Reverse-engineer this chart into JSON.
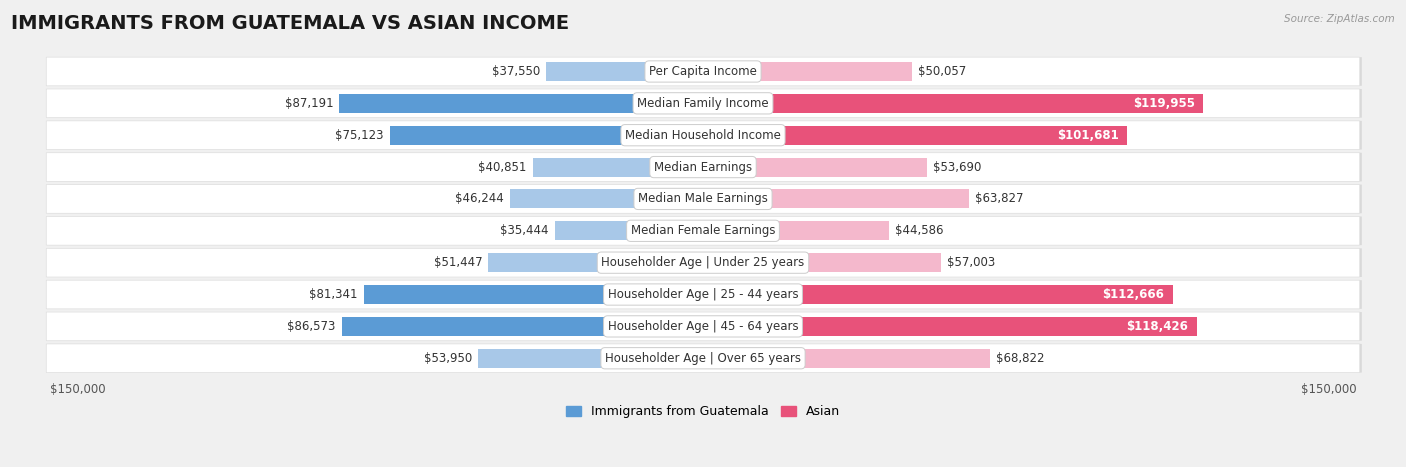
{
  "title": "IMMIGRANTS FROM GUATEMALA VS ASIAN INCOME",
  "source": "Source: ZipAtlas.com",
  "categories": [
    "Per Capita Income",
    "Median Family Income",
    "Median Household Income",
    "Median Earnings",
    "Median Male Earnings",
    "Median Female Earnings",
    "Householder Age | Under 25 years",
    "Householder Age | 25 - 44 years",
    "Householder Age | 45 - 64 years",
    "Householder Age | Over 65 years"
  ],
  "guatemala_values": [
    37550,
    87191,
    75123,
    40851,
    46244,
    35444,
    51447,
    81341,
    86573,
    53950
  ],
  "asian_values": [
    50057,
    119955,
    101681,
    53690,
    63827,
    44586,
    57003,
    112666,
    118426,
    68822
  ],
  "guatemala_light": "#a8c8e8",
  "guatemala_dark": "#5b9bd5",
  "asian_light": "#f4b8cc",
  "asian_dark": "#e8527a",
  "max_val": 150000,
  "background_color": "#f0f0f0",
  "row_bg_color": "#ffffff",
  "title_fontsize": 14,
  "label_fontsize": 8.5,
  "value_fontsize": 8.5,
  "legend_fontsize": 9,
  "dark_threshold_guatemala": 60000,
  "dark_threshold_asian": 80000
}
